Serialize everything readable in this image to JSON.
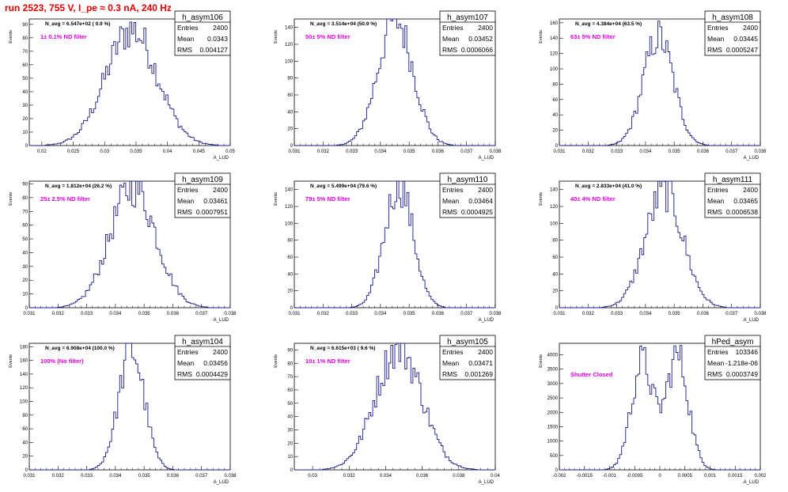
{
  "header": {
    "run_title": "run 2523,   755 V, I_pe ≈ 0.3 nA, 240 Hz"
  },
  "colors": {
    "histogram": "#1a1a8c",
    "annotation": "#e000e0",
    "title": "#e00000"
  },
  "chart_data": [
    {
      "type": "bar",
      "title": "h_asym106",
      "ylabel": "Events",
      "xlabel": "A_LUD",
      "xlim": [
        0.018,
        0.05
      ],
      "ylim": [
        0,
        94
      ],
      "xticks": [
        "0.02",
        "0.025",
        "0.03",
        "0.035",
        "0.04",
        "0.045",
        "0.05"
      ],
      "xtick_values": [
        0.02,
        0.025,
        0.03,
        0.035,
        0.04,
        0.045,
        0.05
      ],
      "yticks": [
        0,
        10,
        20,
        30,
        40,
        50,
        60,
        70,
        80,
        90
      ],
      "navg": "N_avg = 6.547e+02 ( 0.9 %)",
      "label": "1± 0.1% ND filter",
      "stats": {
        "entries": "2400",
        "mean": "0.0343",
        "rms": "0.004127"
      },
      "shape": {
        "peaks": [
          [
            0.0343,
            0.004127,
            1.0
          ]
        ],
        "peak_height": 86
      }
    },
    {
      "type": "bar",
      "title": "h_asym107",
      "ylabel": "Events",
      "xlabel": "A_LUD",
      "xlim": [
        0.031,
        0.038
      ],
      "ylim": [
        0,
        150
      ],
      "xticks": [
        "0.031",
        "0.032",
        "0.033",
        "0.034",
        "0.035",
        "0.036",
        "0.037",
        "0.038"
      ],
      "xtick_values": [
        0.031,
        0.032,
        0.033,
        0.034,
        0.035,
        0.036,
        0.037,
        0.038
      ],
      "yticks": [
        0,
        20,
        40,
        60,
        80,
        100,
        120,
        140
      ],
      "navg": "N_avg = 3.514e+04 (50.9 %)",
      "label": "50± 5% ND filter",
      "stats": {
        "entries": "2400",
        "mean": "0.03452",
        "rms": "0.0006066"
      },
      "shape": {
        "peaks": [
          [
            0.03452,
            0.0006066,
            1.0
          ]
        ],
        "peak_height": 150
      }
    },
    {
      "type": "bar",
      "title": "h_asym108",
      "ylabel": "Events",
      "xlabel": "A_LUD",
      "xlim": [
        0.031,
        0.038
      ],
      "ylim": [
        0,
        165
      ],
      "xticks": [
        "0.031",
        "0.032",
        "0.033",
        "0.034",
        "0.035",
        "0.036",
        "0.037",
        "0.038"
      ],
      "xtick_values": [
        0.031,
        0.032,
        0.033,
        0.034,
        0.035,
        0.036,
        0.037,
        0.038
      ],
      "yticks": [
        0,
        20,
        40,
        60,
        80,
        100,
        120,
        140,
        160
      ],
      "navg": "N_avg = 4.384e+04 (63.5 %)",
      "label": "63± 5% ND filter",
      "stats": {
        "entries": "2400",
        "mean": "0.03445",
        "rms": "0.0005247"
      },
      "shape": {
        "peaks": [
          [
            0.03445,
            0.0005247,
            1.0
          ]
        ],
        "peak_height": 142
      }
    },
    {
      "type": "bar",
      "title": "h_asym109",
      "ylabel": "Events",
      "xlabel": "A_LUD",
      "xlim": [
        0.031,
        0.038
      ],
      "ylim": [
        0,
        92
      ],
      "xticks": [
        "0.031",
        "0.032",
        "0.033",
        "0.034",
        "0.035",
        "0.036",
        "0.037",
        "0.038"
      ],
      "xtick_values": [
        0.031,
        0.032,
        0.033,
        0.034,
        0.035,
        0.036,
        0.037,
        0.038
      ],
      "yticks": [
        0,
        10,
        20,
        30,
        40,
        50,
        60,
        70,
        80,
        90
      ],
      "navg": "N_avg = 1.812e+04 (26.2 %)",
      "label": "25± 2.5% ND filter",
      "stats": {
        "entries": "2400",
        "mean": "0.03461",
        "rms": "0.0007951"
      },
      "shape": {
        "peaks": [
          [
            0.03461,
            0.0007951,
            1.0
          ]
        ],
        "peak_height": 88
      }
    },
    {
      "type": "bar",
      "title": "h_asym110",
      "ylabel": "Events",
      "xlabel": "A_LUD",
      "xlim": [
        0.031,
        0.038
      ],
      "ylim": [
        0,
        150
      ],
      "xticks": [
        "0.031",
        "0.032",
        "0.033",
        "0.034",
        "0.035",
        "0.036",
        "0.037",
        "0.038"
      ],
      "xtick_values": [
        0.031,
        0.032,
        0.033,
        0.034,
        0.035,
        0.036,
        0.037,
        0.038
      ],
      "yticks": [
        0,
        20,
        40,
        60,
        80,
        100,
        120,
        140
      ],
      "navg": "N_avg = 5.499e+04 (79.6 %)",
      "label": "79± 5% ND filter",
      "stats": {
        "entries": "2400",
        "mean": "0.03464",
        "rms": "0.0004925"
      },
      "shape": {
        "peaks": [
          [
            0.03464,
            0.0004925,
            1.0
          ]
        ],
        "peak_height": 147
      }
    },
    {
      "type": "bar",
      "title": "h_asym111",
      "ylabel": "Events",
      "xlabel": "A_LUD",
      "xlim": [
        0.031,
        0.038
      ],
      "ylim": [
        0,
        150
      ],
      "xticks": [
        "0.031",
        "0.032",
        "0.033",
        "0.034",
        "0.035",
        "0.036",
        "0.037",
        "0.038"
      ],
      "xtick_values": [
        0.031,
        0.032,
        0.033,
        0.034,
        0.035,
        0.036,
        0.037,
        0.038
      ],
      "yticks": [
        0,
        20,
        40,
        60,
        80,
        100,
        120,
        140
      ],
      "navg": "N_avg = 2.833e+04 (41.0 %)",
      "label": "40± 4% ND filter",
      "stats": {
        "entries": "2400",
        "mean": "0.03465",
        "rms": "0.0006538"
      },
      "shape": {
        "peaks": [
          [
            0.03465,
            0.0006538,
            1.0
          ]
        ],
        "peak_height": 138
      }
    },
    {
      "type": "bar",
      "title": "h_asym104",
      "ylabel": "Events",
      "xlabel": "A_LUD",
      "xlim": [
        0.031,
        0.038
      ],
      "ylim": [
        0,
        185
      ],
      "xticks": [
        "0.031",
        "0.032",
        "0.033",
        "0.034",
        "0.035",
        "0.036",
        "0.037",
        "0.038"
      ],
      "xtick_values": [
        0.031,
        0.032,
        0.033,
        0.034,
        0.035,
        0.036,
        0.037,
        0.038
      ],
      "yticks": [
        0,
        20,
        40,
        60,
        80,
        100,
        120,
        140,
        160,
        180
      ],
      "navg": "N_avg = 6.908e+04 (100.0 %)",
      "label": "100% (No filter)",
      "stats": {
        "entries": "2400",
        "mean": "0.03456",
        "rms": "0.0004429"
      },
      "shape": {
        "peaks": [
          [
            0.03456,
            0.0004429,
            1.0
          ]
        ],
        "peak_height": 176
      }
    },
    {
      "type": "bar",
      "title": "h_asym105",
      "ylabel": "Events",
      "xlabel": "A_LUD",
      "xlim": [
        0.029,
        0.04
      ],
      "ylim": [
        0,
        95
      ],
      "xticks": [
        "0.03",
        "0.032",
        "0.034",
        "0.036",
        "0.038",
        "0.04"
      ],
      "xtick_values": [
        0.03,
        0.032,
        0.034,
        0.036,
        0.038,
        0.04
      ],
      "yticks": [
        0,
        10,
        20,
        30,
        40,
        50,
        60,
        70,
        80,
        90
      ],
      "navg": "N_avg = 6.615e+03 ( 9.6 %)",
      "label": "10± 1% ND filter",
      "stats": {
        "entries": "2400",
        "mean": "0.03471",
        "rms": "0.001269"
      },
      "shape": {
        "peaks": [
          [
            0.03471,
            0.001269,
            1.0
          ]
        ],
        "peak_height": 92
      }
    },
    {
      "type": "bar",
      "title": "hPed_asym",
      "ylabel": "Events",
      "xlabel": "A_LUD",
      "xlim": [
        -0.002,
        0.002
      ],
      "ylim": [
        0,
        4400
      ],
      "xticks": [
        "-0.002",
        "-0.0015",
        "-0.001",
        "-0.0005",
        "0",
        "0.0005",
        "0.001",
        "0.0015",
        "0.002"
      ],
      "xtick_values": [
        -0.002,
        -0.0015,
        -0.001,
        -0.0005,
        0,
        0.0005,
        0.001,
        0.0015,
        0.002
      ],
      "yticks": [
        0,
        500,
        1000,
        1500,
        2000,
        2500,
        3000,
        3500,
        4000
      ],
      "navg": "",
      "label": "Shutter Closed",
      "stats": {
        "entries": "103346",
        "mean": "-1.218e-06",
        "rms": "0.0003749"
      },
      "shape": {
        "peaks": [
          [
            -0.00035,
            0.00022,
            0.95
          ],
          [
            0.00035,
            0.00022,
            1.0
          ]
        ],
        "peak_height": 3950
      }
    }
  ]
}
